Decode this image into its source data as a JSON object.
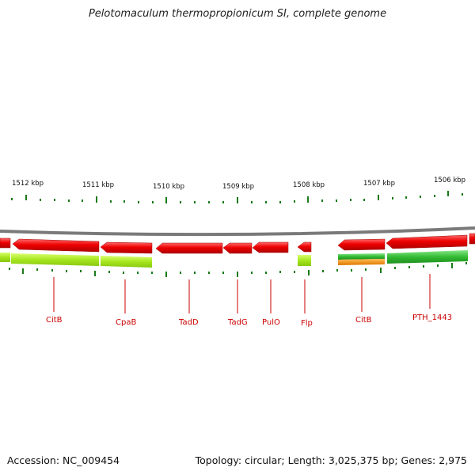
{
  "title": "Pelotomaculum thermopropionicum SI, complete genome",
  "footer": {
    "accession": "Accession: NC_009454",
    "summary": "Topology: circular; Length: 3,025,375 bp; Genes: 2,975"
  },
  "colors": {
    "gene_forward": "#e00000",
    "gene_highlight": "#ff4040",
    "track_lime": "#aaee22",
    "track_green": "#33bb33",
    "track_orange": "#ee8800",
    "backbone": "#808080",
    "tick": "#1a7a1a",
    "label": "#cc0000"
  },
  "scale_labels": [
    {
      "label": "1512 kbp",
      "kbp": 1512
    },
    {
      "label": "1511 kbp",
      "kbp": 1511
    },
    {
      "label": "1510 kbp",
      "kbp": 1510
    },
    {
      "label": "1509 kbp",
      "kbp": 1509
    },
    {
      "label": "1508 kbp",
      "kbp": 1508
    },
    {
      "label": "1507 kbp",
      "kbp": 1507
    },
    {
      "label": "1506 kbp",
      "kbp": 1506
    }
  ],
  "gene_labels": [
    {
      "name": "CitB"
    },
    {
      "name": "CpaB"
    },
    {
      "name": "TadD"
    },
    {
      "name": "TadG"
    },
    {
      "name": "PulO"
    },
    {
      "name": "Flp"
    },
    {
      "name": "CitB"
    },
    {
      "name": "PTH_1443"
    }
  ]
}
